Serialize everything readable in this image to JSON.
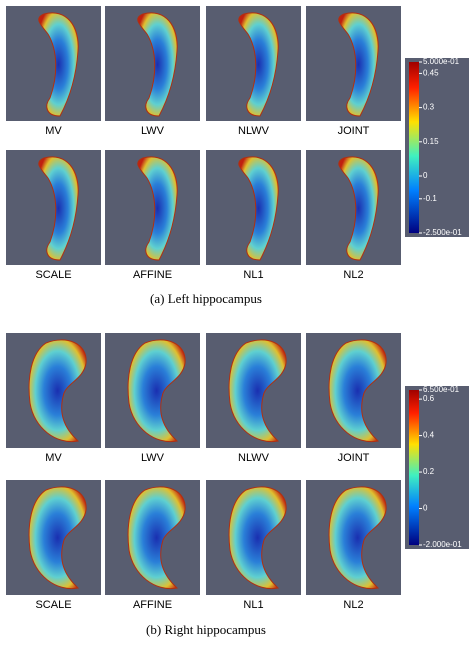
{
  "figures": [
    {
      "labels": [
        "MV",
        "LWV",
        "NLWV",
        "JOINT",
        "SCALE",
        "AFFINE",
        "NL1",
        "NL2"
      ],
      "colorbar_ticks": [
        "5.000e-01",
        "0.45",
        "0.3",
        "0.15",
        "0",
        "-0.1",
        "-2.500e-01"
      ],
      "caption": "(a)  Left hippocampus"
    },
    {
      "labels": [
        "MV",
        "LWV",
        "NLWV",
        "JOINT",
        "SCALE",
        "AFFINE",
        "NL1",
        "NL2"
      ],
      "colorbar_ticks": [
        "6.500e-01",
        "0.6",
        "0.4",
        "0.2",
        "0",
        "-2.000e-01"
      ],
      "caption": "(b)  Right hippocampus"
    }
  ]
}
